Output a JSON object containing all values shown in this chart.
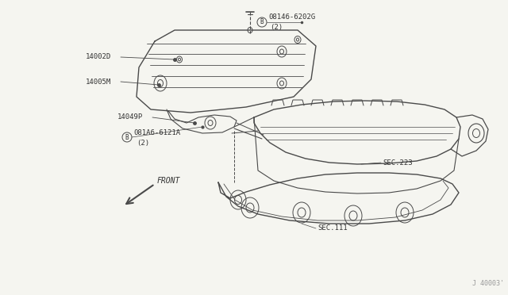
{
  "background_color": "#f5f5f0",
  "line_color": "#4a4a4a",
  "fig_width": 6.4,
  "fig_height": 3.72,
  "dpi": 100,
  "label_color": "#333333",
  "label_fontsize": 6.5,
  "watermark": "J 40003'",
  "parts": {
    "cover_label": "14002D",
    "cover_sub_label": "14005M",
    "bracket_label": "14049P",
    "bolt_top_code": "08146-6202G",
    "bolt_top_qty": "(2)",
    "bolt_left_code": "081A6-6121A",
    "bolt_left_qty": "(2)",
    "sec223": "SEC.223",
    "sec111": "SEC.111",
    "front": "FRONT"
  }
}
